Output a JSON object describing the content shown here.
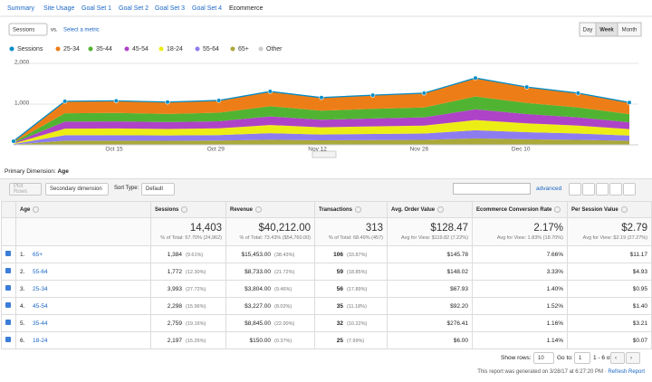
{
  "tabs": [
    "Summary",
    "Site Usage",
    "Goal Set 1",
    "Goal Set 2",
    "Goal Set 3",
    "Goal Set 4",
    "Ecommerce"
  ],
  "active_tab_index": 6,
  "metric_select": "Sessions",
  "vs": "vs.",
  "select_metric": "Select a metric",
  "period_buttons": [
    "Day",
    "Week",
    "Month"
  ],
  "active_period_index": 1,
  "chart": {
    "type": "area",
    "stacked": true,
    "categories": [
      null,
      null,
      null,
      null,
      null,
      null,
      null,
      null,
      null,
      null,
      null,
      null,
      null
    ],
    "xtick_labels": [
      "Oct 15",
      "Oct 29",
      "Nov 12",
      "Nov 26",
      "Dec 10"
    ],
    "ylim": [
      0,
      2000
    ],
    "yticks": [
      {
        "value": 1000,
        "label": "1,000"
      },
      {
        "value": 2000,
        "label": "2,000"
      }
    ],
    "grid": true,
    "series": [
      {
        "name": "Sessions",
        "color": "#058dc7",
        "kind": "line",
        "values": [
          90,
          1070,
          1080,
          1050,
          1090,
          1310,
          1160,
          1220,
          1270,
          1640,
          1420,
          1270,
          1040
        ]
      },
      {
        "name": "25-34",
        "color": "#ed7e17",
        "kind": "area",
        "values": [
          25,
          297,
          299,
          291,
          302,
          363,
          322,
          338,
          352,
          455,
          394,
          352,
          288
        ]
      },
      {
        "name": "35-44",
        "color": "#50b432",
        "kind": "area",
        "values": [
          17,
          205,
          207,
          201,
          209,
          251,
          222,
          234,
          243,
          314,
          272,
          243,
          199
        ]
      },
      {
        "name": "45-54",
        "color": "#ae43c7",
        "kind": "area",
        "values": [
          14,
          171,
          173,
          168,
          174,
          210,
          186,
          195,
          203,
          262,
          227,
          203,
          166
        ]
      },
      {
        "name": "18-24",
        "color": "#eded16",
        "kind": "area",
        "values": [
          14,
          163,
          165,
          160,
          166,
          200,
          177,
          186,
          194,
          250,
          217,
          194,
          159
        ]
      },
      {
        "name": "55-64",
        "color": "#8d7cf0",
        "kind": "area",
        "values": [
          11,
          132,
          133,
          129,
          134,
          161,
          143,
          150,
          156,
          202,
          175,
          156,
          128
        ]
      },
      {
        "name": "65+",
        "color": "#aaa93a",
        "kind": "area",
        "values": [
          9,
          103,
          104,
          101,
          105,
          126,
          111,
          117,
          122,
          157,
          136,
          122,
          100
        ]
      },
      {
        "name": "Other",
        "color": "#cccccc",
        "kind": "area",
        "values": [
          0,
          0,
          0,
          0,
          0,
          0,
          0,
          0,
          0,
          0,
          0,
          0,
          0
        ]
      }
    ]
  },
  "primary_dimension": {
    "label": "Primary Dimension:",
    "value": "Age"
  },
  "toolbar": {
    "plot_rows": "Plot Rows",
    "secondary": "Secondary dimension",
    "sort_label": "Sort Type:",
    "sort_value": "Default",
    "advanced": "advanced"
  },
  "table": {
    "columns": [
      "Age",
      "Sessions",
      "Revenue",
      "Transactions",
      "Avg. Order Value",
      "Ecommerce Conversion Rate",
      "Per Session Value"
    ],
    "totals": [
      [
        "14,403",
        "% of Total: 57.70% (24,962)"
      ],
      [
        "$40,212.00",
        "% of Total: 73.43% ($54,760.00)"
      ],
      [
        "313",
        "% of Total: 68.49% (457)"
      ],
      [
        "$128.47",
        "Avg for View: $119.82 (7.22%)"
      ],
      [
        "2.17%",
        "Avg for View: 1.83% (18.70%)"
      ],
      [
        "$2.79",
        "Avg for View: $2.19 (27.27%)"
      ]
    ],
    "rows": [
      {
        "index": "1.",
        "age": "65+",
        "cells": [
          [
            "1,384",
            "(9.61%)"
          ],
          [
            "$15,453.00",
            "(38.43%)"
          ],
          [
            "106",
            "(33.87%)"
          ],
          [
            "$145.78"
          ],
          [
            "7.66%"
          ],
          [
            "$11.17"
          ]
        ]
      },
      {
        "index": "2.",
        "age": "55-64",
        "cells": [
          [
            "1,772",
            "(12.30%)"
          ],
          [
            "$8,733.00",
            "(21.72%)"
          ],
          [
            "59",
            "(18.85%)"
          ],
          [
            "$148.02"
          ],
          [
            "3.33%"
          ],
          [
            "$4.93"
          ]
        ]
      },
      {
        "index": "3.",
        "age": "25-34",
        "cells": [
          [
            "3,993",
            "(27.72%)"
          ],
          [
            "$3,804.00",
            "(9.46%)"
          ],
          [
            "56",
            "(17.89%)"
          ],
          [
            "$67.93"
          ],
          [
            "1.40%"
          ],
          [
            "$0.95"
          ]
        ]
      },
      {
        "index": "4.",
        "age": "45-54",
        "cells": [
          [
            "2,298",
            "(15.96%)"
          ],
          [
            "$3,227.00",
            "(8.02%)"
          ],
          [
            "35",
            "(11.18%)"
          ],
          [
            "$92.20"
          ],
          [
            "1.52%"
          ],
          [
            "$1.40"
          ]
        ]
      },
      {
        "index": "5.",
        "age": "35-44",
        "cells": [
          [
            "2,759",
            "(19.16%)"
          ],
          [
            "$8,845.00",
            "(22.00%)"
          ],
          [
            "32",
            "(10.22%)"
          ],
          [
            "$276.41"
          ],
          [
            "1.16%"
          ],
          [
            "$3.21"
          ]
        ]
      },
      {
        "index": "6.",
        "age": "18-24",
        "cells": [
          [
            "2,197",
            "(15.25%)"
          ],
          [
            "$150.00",
            "(0.37%)"
          ],
          [
            "25",
            "(7.99%)"
          ],
          [
            "$6.00"
          ],
          [
            "1.14%"
          ],
          [
            "$0.07"
          ]
        ]
      }
    ]
  },
  "footer": {
    "show_rows": "Show rows:",
    "rows_value": "10",
    "goto": "Go to:",
    "goto_value": "1",
    "range": "1 - 6 of 6",
    "generated": "This report was generated on 3/28/17 at 6:27:20 PM",
    "separator": "·",
    "refresh": "Refresh Report"
  }
}
